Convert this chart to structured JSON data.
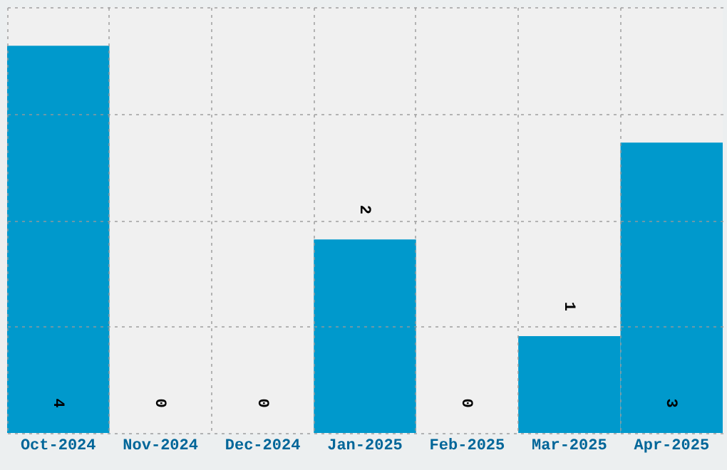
{
  "chart_data": {
    "type": "bar",
    "categories": [
      "Oct-2024",
      "Nov-2024",
      "Dec-2024",
      "Jan-2025",
      "Feb-2025",
      "Mar-2025",
      "Apr-2025"
    ],
    "values": [
      4,
      0,
      0,
      2,
      0,
      1,
      3
    ],
    "color": "#0099cc",
    "ylim": [
      0,
      4.4
    ],
    "yticks": [
      {
        "value": 0,
        "label": null
      },
      {
        "value": 1.1,
        "label": null
      },
      {
        "value": 2.2,
        "label": null
      },
      {
        "value": 3.3,
        "label": null
      },
      {
        "value": 4.4,
        "label": null
      }
    ],
    "tick_labels": "x",
    "grid": true,
    "data_labels": true
  }
}
